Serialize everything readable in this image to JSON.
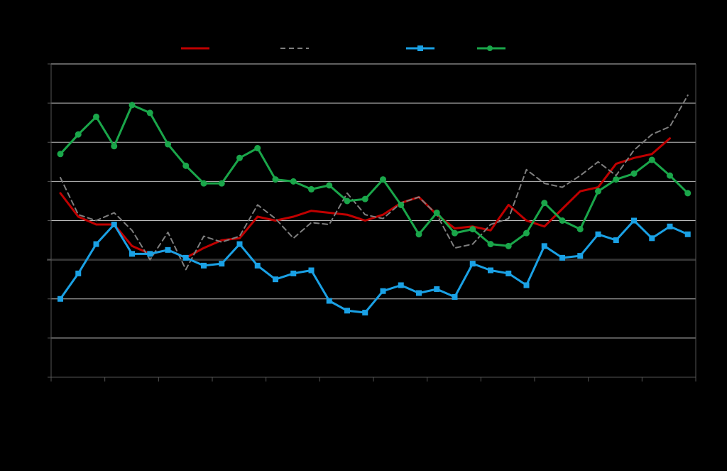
{
  "chart_data": {
    "type": "line",
    "title": "",
    "xlabel": "",
    "ylabel": "",
    "ylim": [
      -3,
      5
    ],
    "grid": true,
    "legend_position": "top",
    "colors": {
      "background": "#000000",
      "gridline": "#bfbfbf",
      "zero_line": "#333333",
      "axis": "#555555"
    },
    "x": [
      1,
      2,
      3,
      4,
      5,
      6,
      7,
      8,
      9,
      10,
      11,
      12,
      13,
      14,
      15,
      16,
      17,
      18,
      19,
      20,
      21,
      22,
      23,
      24,
      25,
      26,
      27,
      28,
      29,
      30,
      31,
      32,
      33,
      34,
      35,
      36
    ],
    "series": [
      {
        "color": "#c00000",
        "style": "solid",
        "marker": "none",
        "values": [
          1.7,
          1.1,
          0.9,
          0.9,
          0.35,
          0.15,
          0.25,
          0.05,
          0.3,
          0.5,
          0.55,
          1.1,
          1.0,
          1.1,
          1.25,
          1.2,
          1.15,
          1.0,
          1.15,
          1.45,
          1.6,
          1.15,
          0.8,
          0.85,
          0.75,
          1.4,
          1.0,
          0.85,
          1.3,
          1.75,
          1.85,
          2.45,
          2.6,
          2.7,
          3.1,
          null
        ],
        "x_offset": 0
      },
      {
        "color": "#7f7f7f",
        "style": "dashed",
        "marker": "none",
        "values": [
          2.1,
          1.15,
          1.0,
          1.2,
          0.75,
          0.0,
          0.7,
          -0.25,
          0.6,
          0.45,
          0.6,
          1.4,
          1.05,
          0.55,
          0.95,
          0.9,
          1.7,
          1.15,
          1.05,
          1.45,
          1.6,
          1.15,
          0.3,
          0.4,
          0.9,
          1.05,
          2.3,
          1.95,
          1.85,
          2.15,
          2.5,
          2.15,
          2.8,
          3.2,
          3.4,
          4.2
        ],
        "x_offset": 0
      },
      {
        "color": "#1aa1e5",
        "style": "solid",
        "marker": "square",
        "values": [
          -1.0,
          -0.35,
          0.4,
          0.9,
          0.15,
          0.15,
          0.25,
          0.05,
          -0.15,
          -0.1,
          0.4,
          -0.15,
          -0.5,
          -0.35,
          -0.27,
          -1.05,
          -1.3,
          -1.35,
          -0.8,
          -0.65,
          -0.85,
          -0.75,
          -0.95,
          -0.1,
          -0.27,
          -0.35,
          -0.65,
          0.35,
          0.05,
          0.1,
          0.65,
          0.5,
          1.0,
          0.55,
          0.85,
          0.65
        ],
        "x_offset": 0
      },
      {
        "color": "#1aa64a",
        "style": "solid",
        "marker": "circle",
        "values": [
          2.7,
          3.2,
          3.65,
          2.9,
          3.95,
          3.75,
          2.95,
          2.4,
          1.95,
          1.95,
          2.6,
          2.85,
          2.05,
          2.0,
          1.8,
          1.9,
          1.5,
          1.55,
          2.05,
          1.4,
          0.65,
          1.2,
          0.68,
          0.78,
          0.4,
          0.35,
          0.68,
          1.45,
          1.0,
          0.78,
          1.75,
          2.05,
          2.2,
          2.55,
          2.15,
          1.7
        ],
        "x_offset": 0
      }
    ]
  }
}
